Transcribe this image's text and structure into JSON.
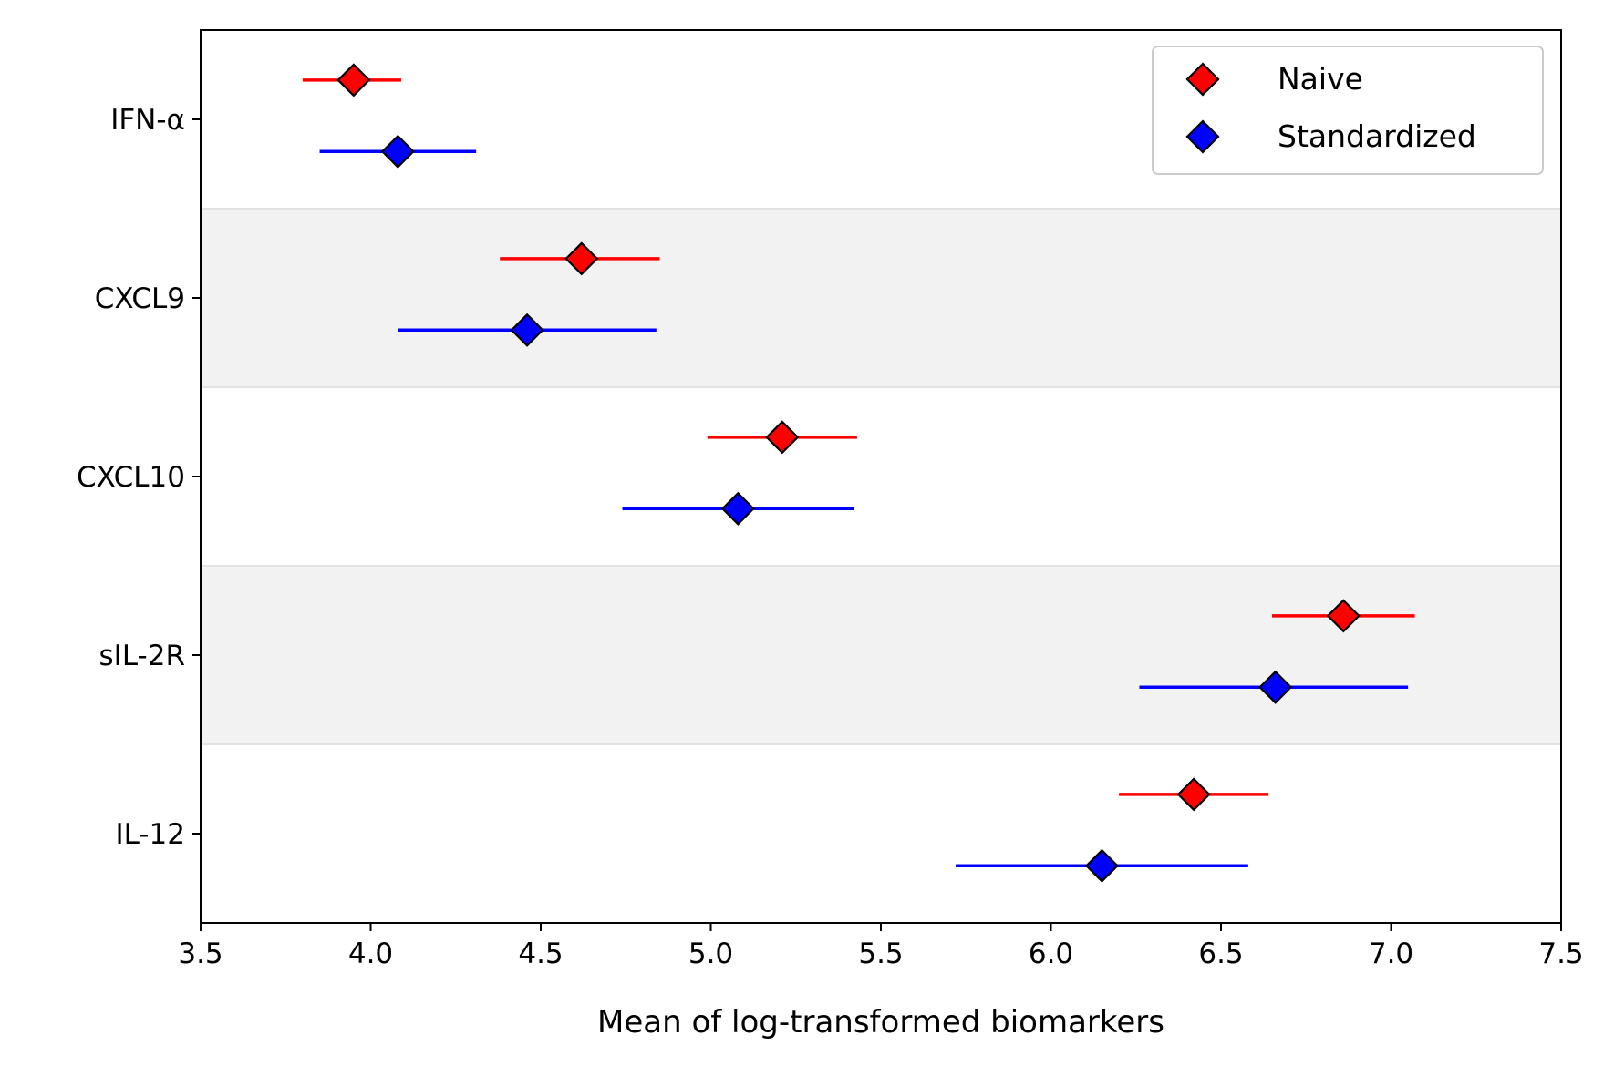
{
  "chart_data": {
    "type": "scatter",
    "title": "",
    "xlabel": "Mean of log-transformed biomarkers",
    "ylabel": "",
    "xlim": [
      3.5,
      7.5
    ],
    "xticks": [
      3.5,
      4.0,
      4.5,
      5.0,
      5.5,
      6.0,
      6.5,
      7.0,
      7.5
    ],
    "xtick_labels": [
      "3.5",
      "4.0",
      "4.5",
      "5.0",
      "5.5",
      "6.0",
      "6.5",
      "7.0",
      "7.5"
    ],
    "categories": [
      "IFN-α",
      "CXCL9",
      "CXCL10",
      "sIL-2R",
      "IL-12"
    ],
    "grid": false,
    "alternating_bands": true,
    "legend_position": "top-right",
    "series": [
      {
        "name": "Naive",
        "color": "#ff0000",
        "marker": "diamond",
        "means": [
          3.95,
          4.62,
          5.21,
          6.86,
          6.42
        ],
        "ci_low": [
          3.8,
          4.38,
          4.99,
          6.65,
          6.2
        ],
        "ci_high": [
          4.09,
          4.85,
          5.43,
          7.07,
          6.64
        ]
      },
      {
        "name": "Standardized",
        "color": "#0000ff",
        "marker": "diamond",
        "means": [
          4.08,
          4.46,
          5.08,
          6.66,
          6.15
        ],
        "ci_low": [
          3.85,
          4.08,
          4.74,
          6.26,
          5.72
        ],
        "ci_high": [
          4.31,
          4.84,
          5.42,
          7.05,
          6.58
        ]
      }
    ]
  }
}
